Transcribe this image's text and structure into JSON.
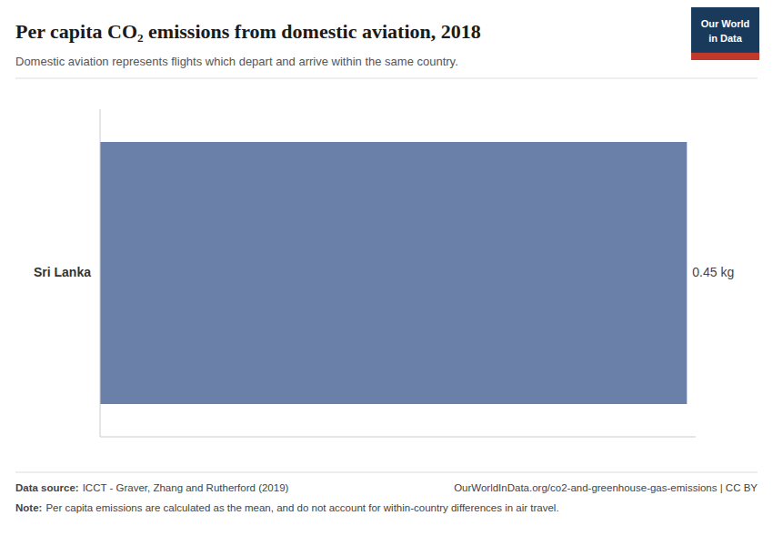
{
  "chart_data": {
    "type": "bar",
    "orientation": "horizontal",
    "title": "Per capita CO₂ emissions from domestic aviation, 2018",
    "subtitle": "Domestic aviation represents flights which depart and arrive within the same country.",
    "categories": [
      "Sri Lanka"
    ],
    "values": [
      0.45
    ],
    "value_labels": [
      "0.45 kg"
    ],
    "color": "#6b80a8",
    "xlim": [
      0,
      0.45675
    ],
    "tick_labels": false,
    "data_labels": true,
    "source_label": "Data source:",
    "source": "ICCT - Graver, Zhang and Rutherford (2019)",
    "url": "OurWorldInData.org/co2-and-greenhouse-gas-emissions | CC BY",
    "note_label": "Note:",
    "note": "Per capita emissions are calculated as the mean, and do not account for within-country differences in air travel.",
    "logo": [
      "Our World",
      "in Data"
    ]
  }
}
